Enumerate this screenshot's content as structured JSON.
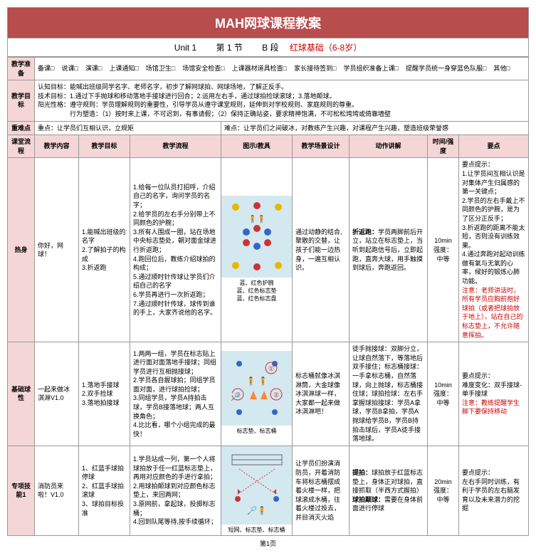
{
  "title": "MAH网球课程教案",
  "unit": {
    "left": "Unit 1 　　第  1  节　　 B 段　",
    "right": "红球基础（6-8岁）"
  },
  "prep": {
    "label": "教学准备",
    "items": [
      "备课□",
      "说课□",
      "演课□",
      "上课通知□",
      "场馆卫生□",
      "场馆安全检查□",
      "上课器材道具检查□",
      "家长接待签到□",
      "学员组织准备上课□",
      "提醒学员统一身穿蓝色队服□",
      "其他□"
    ]
  },
  "goals": {
    "label": "教学目标",
    "l1": "认知目标：能喊出班级同学名字、老师名字，初步了解网球拍、网球场地，了解正反手。",
    "l2": "技术目标：1.通过下手抛球和移动落地手接球进行回合；2.运用左右手，通过球拍捡球滚球；3.落地颠球。",
    "l3": "阳光性格：遵守规则：学员理解规则的重要性，引导学员从遵守课堂规则，延伸到对学校规则、家庭规则的尊重。",
    "l4": "　　　　　行为塑造：（1）按时来上课，不可迟到，有事请假；（2）保持正确站姿，要求精神饱满，不可松松垮垮或倚靠墙壁"
  },
  "diff": {
    "label": "重难点",
    "easy": "重点：让学员们互相认识，立规矩",
    "hard": "难点：让学员们之间破冰，对教练产生兴趣，对课程产生兴趣，塑造班级荣誉感"
  },
  "flow": {
    "label": "课堂流程",
    "cols": [
      "教学内容",
      "教学目标",
      "教学流程",
      "图示/教具",
      "教学场景设计",
      "动作讲解",
      "时间/强度",
      "要点"
    ]
  },
  "rows": [
    {
      "section": "热身",
      "content": "你好，网球！",
      "goals": "1.能喊出班级的名字\n2.了解拍子的构成\n3.折返跑",
      "process": "1.给每一位队员打招呼，介绍自己的名字，询问学员的名字；\n2.给学员的左右手分别带上不同颜色的护腕；\n3.所有人围成一圈，站在场地中央标志垫处，朝对面金球进行折返跑；\n4.跑回位后，教练介绍球拍的构成；\n5.通过顺时针传球让学员们介绍自己的名字\n6.学员再进行一次折返跑；\n7.通过顺时针传球，球传到谁的手上，大家齐说他的名字。",
      "diagram": {
        "caption": "蓝、红色护腕\n蓝、红色标志垫\n蓝、红色标志盘"
      },
      "scene": "通过动静的结合,聚散的交替，让孩子们能一边热身，一遍互相认识。",
      "action_h": "折返跑：",
      "action_t": "学员两脚前后开立，站立在标志垫上，当听到起跑信号后，立即起跑，直奔大球，用手触摸到球后，奔跑返回。",
      "time": "10min\n强度：中等",
      "key": "要点提示：\n1.让学员间互相认识是对集体产生归属感的第一关键点；\n2.学员的左右手戴上不同颜色的护腕，是为了区分正反手；\n3.折返跑的距离不能太短，否则没有训练效果。\n4.通过奔跑对起动训练做有氧与无氧的心率，候好的锻炼心肺功能。",
      "key_red": "注意：老师讲话时，所有学员应胸前抱好球拍（或者把球拍放于地上），站在自己的标志垫上，不允许随意挥拍。"
    },
    {
      "section": "基础球性",
      "content": "一起来做冰淇淋V1.0",
      "goals": "1.落地手接球\n2.双手捡球\n3.落地拍接球",
      "process": "1.两两一组，学员在标志贴上进行面对面落地手接球；同组学员进行互相抛接球；\n2.学员各自握球拍；同组学员面对面，进行球拍捡球；\n3.同组学员，学员A持拍击球，学员B接落地球；两人互换角色；\n4.比比看，哪个小组完成的最快！",
      "diagram": {
        "caption": "标志垫、标志桶"
      },
      "scene": "标志桶就像冰淇淋筒，大金球像冰淇淋球一样，大家都一起来做冰淇淋吧！",
      "action": "徒手抛接球：双脚分立，让球自然落下，等落地后双手接住；标志桶接球：一手拿标志桶，自然落球，向上抛球，标志桶接住球；球拍捡球：左右手掌握球拍接球：学员A拿球，学员B拿拍，学员A抛球给学员B，学员B持拍击球后，学员A徒手接落地球。",
      "time": "10min\n强度：中等",
      "key": "要点提示：\n难度变化：双手接球-单手接球",
      "key_red": "注意：教练提醒学生脚下要保持移动"
    },
    {
      "section": "专项技能1",
      "content": "消防员来啦！V1.0",
      "goals": "1、红蓝手球拍停球\n2、红蓝手球拍滚球\n3、球拍目标投准",
      "process": "1.学员站成一列，第一个人将球拍放于任一红蓝标志垫上，再用对应颜色的手进行拿拍；\n2.用球拍颠球到对应颜色标志垫上，来回两网；\n3.原网前，拿起球，投掷标志桶；\n4.回到队尾等待,按手续循环；",
      "diagram": {
        "caption": "短网、标志垫、标志桶"
      },
      "scene": "让学员们扮演消防员，开着消防车将标志桶摆成着火楼一样，把球滚成水桶，往着火楼过投去，并目消灭火焰",
      "action_h1": "提拍：",
      "action_t1": "球拍放于红蓝标志垫上，身体正对球拍，直接抓取（半西方式握拍）",
      "action_h2": "球拍颠球：",
      "action_t2": "需要在身体前面进行停球",
      "time": "20min\n强度：中等",
      "key": "要点提示：\n左右手同时训练，有利于学员的左右脑发育以及未来潜力的挖掘"
    }
  ],
  "pageNo": "第1页",
  "colors": {
    "header_bg": "#b84d4d",
    "cell_hdr": "#f5d6d6",
    "diagram_bg": "#d4e8f0"
  }
}
